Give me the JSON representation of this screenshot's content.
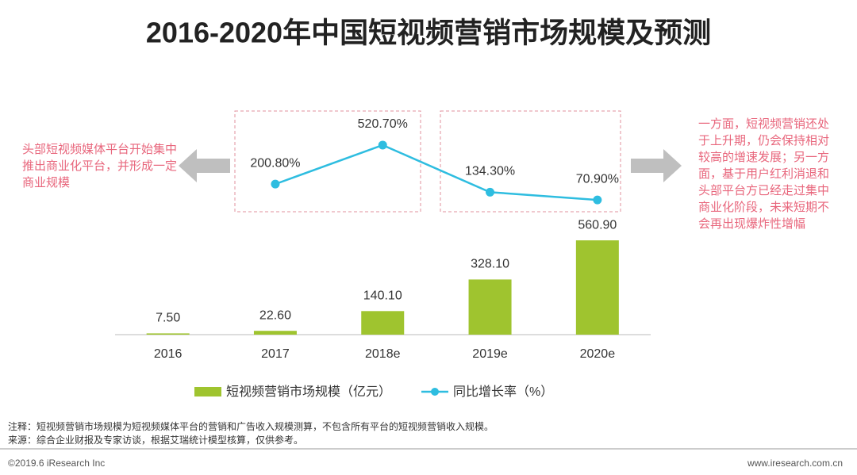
{
  "chart_data": {
    "type": "bar",
    "title": "2016-2020年中国短视频营销市场规模及预测",
    "categories": [
      "2016",
      "2017",
      "2018e",
      "2019e",
      "2020e"
    ],
    "series": [
      {
        "name": "短视频营销市场规模（亿元）",
        "type": "bar",
        "color": "#9fc42f",
        "values": [
          7.5,
          22.6,
          140.1,
          328.1,
          560.9
        ],
        "value_labels": [
          "7.50",
          "22.60",
          "140.10",
          "328.10",
          "560.90"
        ]
      },
      {
        "name": "同比增长率（%）",
        "type": "line",
        "axis": "y2",
        "color": "#2ebde0",
        "values": [
          null,
          200.8,
          520.7,
          134.3,
          70.9
        ],
        "value_labels": [
          null,
          "200.80%",
          "520.70%",
          "134.30%",
          "70.90%"
        ]
      }
    ],
    "ylim": [
      0,
      1000
    ],
    "y2lim": [
      0,
      800
    ],
    "annotations": [
      "头部短视频媒体平台开始集中推出商业化平台，并形成一定商业规模",
      "一方面，短视频营销还处于上升期，仍会保持相对较高的增速发展；另一方面，基于用户红利消退和头部平台方已经走过集中商业化阶段，未来短期不会再出现爆炸性增幅"
    ],
    "notes": [
      "注释：短视频营销市场规模为短视频媒体平台的营销和广告收入规模测算，不包含所有平台的短视频营销收入规模。",
      "来源：综合企业财报及专家访谈，根据艾瑞统计模型核算，仅供参考。"
    ],
    "footer_left": "©2019.6 iResearch Inc",
    "footer_right": "www.iresearch.com.cn"
  }
}
